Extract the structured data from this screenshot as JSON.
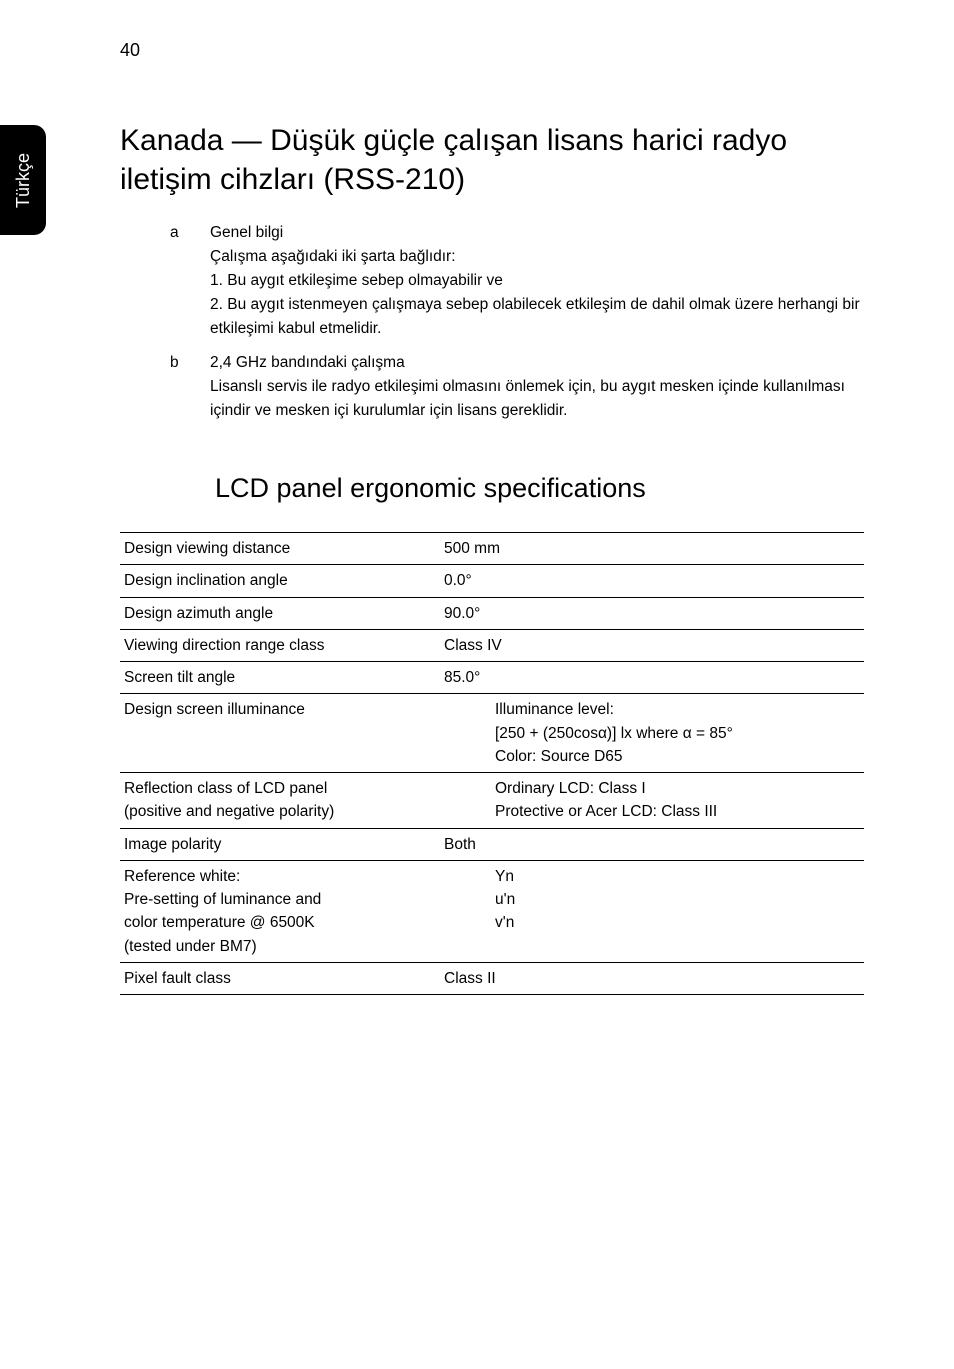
{
  "page_number": "40",
  "side_tab": "Türkçe",
  "heading1": "Kanada — Düşük güçle çalışan lisans harici radyo iletişim cihzları (RSS-210)",
  "list": {
    "a": {
      "letter": "a",
      "title": "Genel bilgi",
      "line1": "Çalışma aşağıdaki iki şarta bağlıdır:",
      "line2": "1. Bu aygıt etkileşime sebep olmayabilir ve",
      "line3": "2. Bu aygıt istenmeyen çalışmaya sebep olabilecek etkileşim de dahil olmak üzere herhangi bir etkileşimi kabul etmelidir."
    },
    "b": {
      "letter": "b",
      "title": "2,4 GHz bandındaki çalışma",
      "line1": "Lisanslı servis ile radyo etkileşimi olmasını önlemek için, bu aygıt mesken içinde kullanılması içindir ve mesken içi kurulumlar için lisans gereklidir."
    }
  },
  "heading2": "LCD panel ergonomic specifications",
  "table": {
    "r1": {
      "label": "Design viewing distance",
      "value": "500 mm"
    },
    "r2": {
      "label": "Design inclination angle",
      "value": "0.0°"
    },
    "r3": {
      "label": "Design azimuth angle",
      "value": "90.0°"
    },
    "r4": {
      "label": "Viewing direction range class",
      "value": "Class IV"
    },
    "r5": {
      "label": "Screen tilt angle",
      "value": "85.0°"
    },
    "r6": {
      "label": "Design screen illuminance",
      "v1": "Illuminance level:",
      "v2": "[250 + (250cosα)] lx where α = 85°",
      "v3": "Color: Source D65"
    },
    "r7": {
      "label1": "Reflection class of LCD panel",
      "label2": "(positive and negative polarity)",
      "v1": "Ordinary LCD: Class I",
      "v2": "Protective or Acer LCD: Class III"
    },
    "r8": {
      "label": "Image polarity",
      "value": "Both"
    },
    "r9": {
      "l1": "Reference white:",
      "l2": "Pre-setting of luminance and",
      "l3": "color temperature @ 6500K",
      "l4": "(tested under BM7)",
      "v1": "Yn",
      "v2": "u'n",
      "v3": "v'n"
    },
    "r10": {
      "label": "Pixel fault class",
      "value": "Class II"
    }
  }
}
